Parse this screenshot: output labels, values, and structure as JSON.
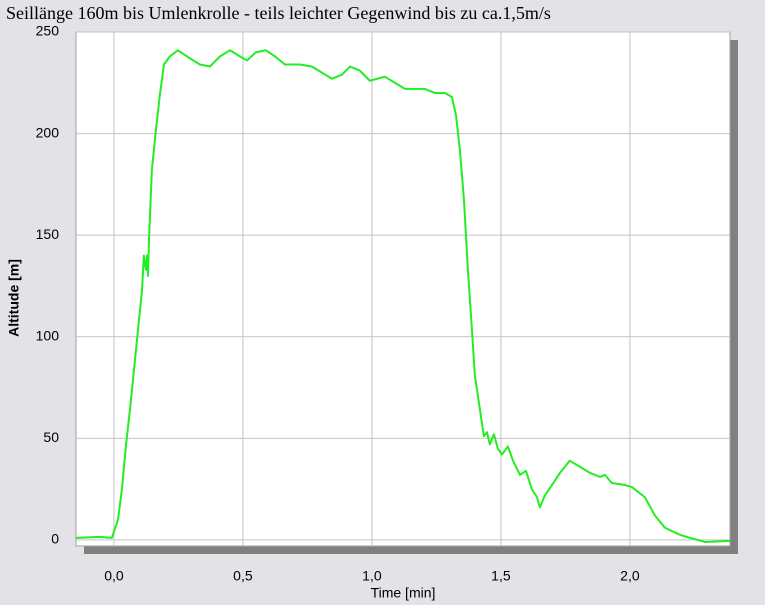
{
  "chart_data": {
    "type": "line",
    "title": "Seillänge 160m bis Umlenkrolle - teils leichter Gegenwind bis zu ca.1,5m/s",
    "x_label": "Time [min]",
    "y_label": "Altitude [m]",
    "xlim": [
      -0.147,
      2.388
    ],
    "ylim": [
      -3,
      250
    ],
    "xticks": [
      {
        "value": 0,
        "label": "0,0"
      },
      {
        "value": 0.5,
        "label": "0,5"
      },
      {
        "value": 1,
        "label": "1,0"
      },
      {
        "value": 1.5,
        "label": "1,5"
      },
      {
        "value": 2,
        "label": "2,0"
      }
    ],
    "yticks": [
      0,
      50,
      100,
      150,
      200,
      250
    ],
    "grid": true,
    "series": [
      {
        "color": "#22ee22",
        "x": [
          -0.147,
          -0.054,
          -0.008,
          0.016,
          0.031,
          0.047,
          0.062,
          0.078,
          0.093,
          0.109,
          0.116,
          0.124,
          0.128,
          0.132,
          0.136,
          0.147,
          0.163,
          0.178,
          0.194,
          0.217,
          0.248,
          0.295,
          0.333,
          0.372,
          0.411,
          0.45,
          0.488,
          0.516,
          0.55,
          0.589,
          0.624,
          0.663,
          0.721,
          0.767,
          0.806,
          0.845,
          0.884,
          0.915,
          0.953,
          0.992,
          1.05,
          1.089,
          1.128,
          1.205,
          1.244,
          1.283,
          1.31,
          1.326,
          1.341,
          1.357,
          1.372,
          1.388,
          1.399,
          1.419,
          1.434,
          1.446,
          1.457,
          1.473,
          1.488,
          1.504,
          1.527,
          1.547,
          1.574,
          1.597,
          1.62,
          1.64,
          1.651,
          1.671,
          1.698,
          1.729,
          1.767,
          1.806,
          1.845,
          1.884,
          1.903,
          1.93,
          1.981,
          2.008,
          2.058,
          2.097,
          2.136,
          2.194,
          2.233,
          2.291,
          2.388
        ],
        "values": [
          1,
          1.5,
          1,
          10,
          25,
          47,
          64,
          84,
          103,
          123,
          140,
          133,
          140,
          130,
          148,
          182,
          202,
          219,
          234,
          238,
          241,
          237,
          234,
          233,
          238,
          241,
          238,
          236,
          240,
          241,
          238,
          234,
          234,
          233,
          230,
          227,
          229,
          233,
          231,
          226,
          228,
          225,
          222,
          222,
          220,
          220,
          218,
          209,
          192,
          167,
          133,
          103,
          81,
          64,
          51,
          53,
          47,
          52,
          45,
          42,
          46,
          39,
          32,
          34,
          25,
          21,
          16,
          22,
          27,
          33,
          39,
          36,
          33,
          31,
          32,
          28,
          27,
          26,
          21,
          12,
          6,
          2.5,
          1,
          -1,
          -0.5
        ]
      }
    ]
  }
}
